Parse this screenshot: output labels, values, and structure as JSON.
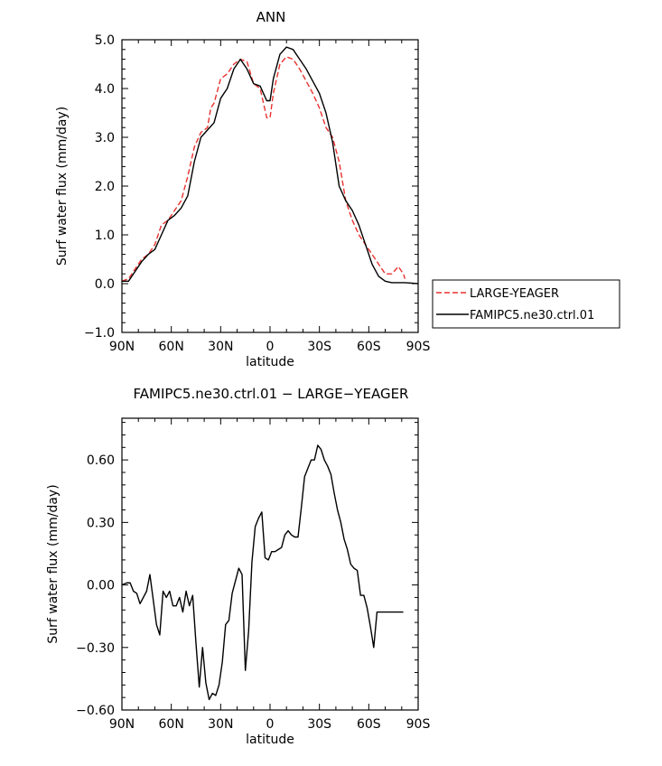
{
  "chart_data": [
    {
      "type": "line",
      "title": "ANN",
      "xlabel": "latitude",
      "ylabel": "Surf water flux (mm/day)",
      "xlim": [
        -90,
        90
      ],
      "ylim": [
        -1.0,
        5.0
      ],
      "x_ticks": [
        -90,
        -60,
        -30,
        0,
        30,
        60,
        90
      ],
      "x_tick_labels": [
        "90N",
        "60N",
        "30N",
        "0",
        "30S",
        "60S",
        "90S"
      ],
      "y_ticks": [
        -1.0,
        0.0,
        1.0,
        2.0,
        3.0,
        4.0,
        5.0
      ],
      "y_tick_labels": [
        "−1.0",
        "0.0",
        "1.0",
        "2.0",
        "3.0",
        "4.0",
        "5.0"
      ],
      "legend_position": "right",
      "series": [
        {
          "name": "LARGE-YEAGER",
          "color": "#e8322f",
          "dash": "dashed",
          "x": [
            -90,
            -86,
            -82,
            -78,
            -74,
            -70,
            -66,
            -62,
            -58,
            -54,
            -50,
            -46,
            -42,
            -38,
            -36,
            -34,
            -30,
            -26,
            -22,
            -18,
            -14,
            -10,
            -6,
            -2,
            0,
            2,
            6,
            10,
            14,
            18,
            22,
            26,
            30,
            34,
            38,
            42,
            46,
            50,
            54,
            58,
            62,
            66,
            70,
            74,
            78,
            81,
            82
          ],
          "y": [
            0.05,
            0.1,
            0.3,
            0.5,
            0.6,
            0.8,
            1.2,
            1.3,
            1.5,
            1.7,
            2.2,
            2.8,
            3.1,
            3.2,
            3.6,
            3.7,
            4.2,
            4.3,
            4.5,
            4.6,
            4.55,
            4.1,
            4.0,
            3.4,
            3.4,
            3.9,
            4.5,
            4.65,
            4.6,
            4.4,
            4.15,
            3.9,
            3.6,
            3.2,
            3.0,
            2.5,
            1.7,
            1.3,
            1.0,
            0.8,
            0.6,
            0.4,
            0.2,
            0.2,
            0.35,
            0.2,
            0.1
          ]
        },
        {
          "name": "FAMIPC5.ne30.ctrl.01",
          "color": "#000000",
          "dash": "solid",
          "x": [
            -90,
            -86,
            -82,
            -78,
            -74,
            -70,
            -66,
            -62,
            -58,
            -54,
            -50,
            -46,
            -42,
            -38,
            -34,
            -30,
            -26,
            -22,
            -18,
            -14,
            -10,
            -6,
            -2,
            0,
            2,
            6,
            10,
            14,
            18,
            22,
            26,
            30,
            34,
            38,
            42,
            46,
            50,
            54,
            58,
            62,
            66,
            70,
            74,
            78,
            82,
            86,
            90
          ],
          "y": [
            0.05,
            0.05,
            0.25,
            0.45,
            0.6,
            0.7,
            1.0,
            1.3,
            1.4,
            1.55,
            1.8,
            2.5,
            3.0,
            3.15,
            3.3,
            3.8,
            4.0,
            4.4,
            4.6,
            4.4,
            4.1,
            4.05,
            3.75,
            3.75,
            4.2,
            4.7,
            4.85,
            4.8,
            4.6,
            4.4,
            4.15,
            3.9,
            3.5,
            2.9,
            2.0,
            1.7,
            1.5,
            1.2,
            0.8,
            0.4,
            0.15,
            0.05,
            0.02,
            0.02,
            0.02,
            0.01,
            0.0
          ]
        }
      ]
    },
    {
      "type": "line",
      "title": "FAMIPC5.ne30.ctrl.01 − LARGE−YEAGER",
      "xlabel": "latitude",
      "ylabel": "Surf water flux (mm/day)",
      "xlim": [
        -90,
        90
      ],
      "ylim": [
        -0.6,
        0.8
      ],
      "x_ticks": [
        -90,
        -60,
        -30,
        0,
        30,
        60,
        90
      ],
      "x_tick_labels": [
        "90N",
        "60N",
        "30N",
        "0",
        "30S",
        "60S",
        "90S"
      ],
      "y_ticks": [
        -0.6,
        -0.3,
        0.0,
        0.3,
        0.6
      ],
      "y_tick_labels": [
        "−0.60",
        "−0.30",
        "0.00",
        "0.30",
        "0.60"
      ],
      "series": [
        {
          "name": "FAMIPC5.ne30.ctrl.01 − LARGE−YEAGER",
          "color": "#000000",
          "dash": "solid",
          "x": [
            -90,
            -87,
            -85,
            -83,
            -81,
            -79,
            -77,
            -75,
            -73,
            -71,
            -69,
            -67,
            -65,
            -63,
            -61,
            -59,
            -57,
            -55,
            -53,
            -51,
            -49,
            -47,
            -45,
            -43,
            -41,
            -39,
            -37,
            -35,
            -33,
            -31,
            -29,
            -27,
            -25,
            -23,
            -21,
            -19,
            -17,
            -15,
            -13,
            -11,
            -9,
            -7,
            -5,
            -3,
            -1,
            1,
            3,
            5,
            7,
            9,
            11,
            13,
            15,
            17,
            19,
            21,
            23,
            25,
            27,
            29,
            31,
            33,
            35,
            37,
            39,
            41,
            43,
            45,
            47,
            49,
            51,
            53,
            55,
            57,
            59,
            61,
            63,
            65,
            67,
            69,
            71,
            73,
            75,
            77,
            79,
            81
          ],
          "y": [
            0.0,
            0.01,
            0.01,
            -0.03,
            -0.04,
            -0.09,
            -0.06,
            -0.03,
            0.05,
            -0.07,
            -0.19,
            -0.24,
            -0.03,
            -0.06,
            -0.03,
            -0.1,
            -0.1,
            -0.06,
            -0.13,
            -0.03,
            -0.1,
            -0.05,
            -0.28,
            -0.49,
            -0.3,
            -0.47,
            -0.55,
            -0.52,
            -0.53,
            -0.48,
            -0.37,
            -0.19,
            -0.17,
            -0.04,
            0.02,
            0.08,
            0.05,
            -0.41,
            -0.22,
            0.11,
            0.28,
            0.32,
            0.35,
            0.13,
            0.12,
            0.16,
            0.16,
            0.17,
            0.18,
            0.24,
            0.26,
            0.24,
            0.23,
            0.23,
            0.37,
            0.52,
            0.56,
            0.6,
            0.6,
            0.67,
            0.65,
            0.6,
            0.57,
            0.53,
            0.44,
            0.36,
            0.3,
            0.22,
            0.17,
            0.1,
            0.08,
            0.07,
            -0.05,
            -0.05,
            -0.11,
            -0.2,
            -0.3,
            -0.13,
            -0.13,
            -0.13,
            -0.13,
            -0.13,
            -0.13,
            -0.13,
            -0.13,
            -0.13
          ]
        }
      ]
    }
  ]
}
